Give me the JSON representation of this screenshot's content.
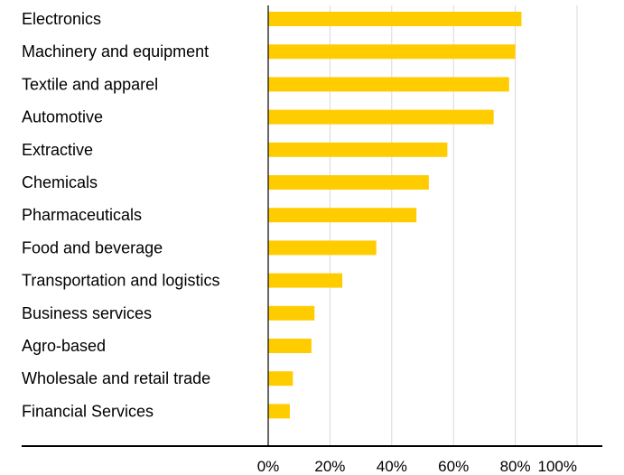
{
  "chart_data": {
    "type": "bar",
    "orientation": "horizontal",
    "categories": [
      "Electronics",
      "Machinery and equipment",
      "Textile and apparel",
      "Automotive",
      "Extractive",
      "Chemicals",
      "Pharmaceuticals",
      "Food and beverage",
      "Transportation and logistics",
      "Business services",
      "Agro-based",
      "Wholesale and retail trade",
      "Financial Services"
    ],
    "values": [
      82,
      80,
      78,
      73,
      58,
      52,
      48,
      35,
      24,
      15,
      14,
      8,
      7
    ],
    "xlim": [
      0,
      100
    ],
    "xticks": [
      0,
      20,
      40,
      60,
      80,
      100
    ],
    "xtick_labels": [
      "0%",
      "20%",
      "40%",
      "60%",
      "80%",
      "100%"
    ],
    "grid": "vertical",
    "bar_color": "#FFCC00",
    "grid_color": "#d9d9d9",
    "axis_color": "#000000"
  }
}
